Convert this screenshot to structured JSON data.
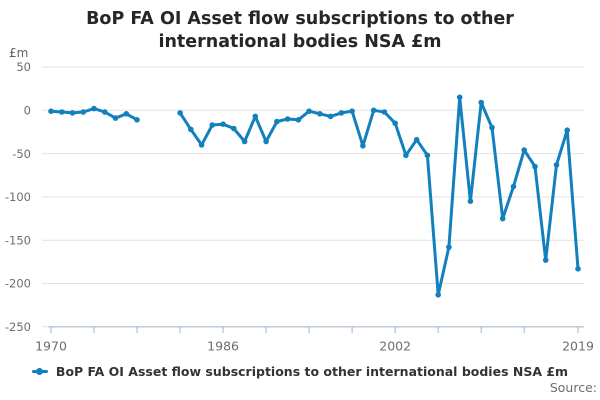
{
  "title": "BoP FA OI Asset flow subscriptions to other international bodies NSA £m",
  "legend": {
    "label": "BoP FA OI Asset flow subscriptions to other international bodies NSA £m",
    "marker": "line-with-dot-icon"
  },
  "source_label": "Source:",
  "colors": {
    "series_blue": "#1380be",
    "gridline": "#e2e2e2",
    "axis": "#aebfd2",
    "tick_label": "#6e6e6e",
    "title_text": "#262626"
  },
  "chart_data": {
    "type": "line",
    "title": "BoP FA OI Asset flow subscriptions to other international bodies NSA £m",
    "y_unit_label": "£m",
    "xlabel": "",
    "ylabel": "£m",
    "xlim": [
      1970,
      2019
    ],
    "ylim": [
      -250,
      50
    ],
    "grid": true,
    "legend_position": "bottom",
    "x_minor_ticks": [
      1970,
      1974,
      1978,
      1982,
      1986,
      1990,
      1994,
      1998,
      2002,
      2006,
      2010,
      2014,
      2019
    ],
    "x_labeled_ticks": [
      {
        "year": 1970,
        "label": "1970"
      },
      {
        "year": 1986,
        "label": "1986"
      },
      {
        "year": 2002,
        "label": "2002"
      },
      {
        "year": 2019,
        "label": "2019"
      }
    ],
    "y_ticks": [
      50,
      0,
      -50,
      -100,
      -150,
      -200,
      -250
    ],
    "series": [
      {
        "name": "BoP FA OI Asset flow subscriptions to other international bodies NSA £m",
        "color": "#1380be",
        "note": "gap in data between 1978 and 1982",
        "points": [
          [
            1970,
            -1
          ],
          [
            1971,
            -2
          ],
          [
            1972,
            -3
          ],
          [
            1973,
            -2
          ],
          [
            1974,
            2
          ],
          [
            1975,
            -2
          ],
          [
            1976,
            -9
          ],
          [
            1977,
            -4
          ],
          [
            1978,
            -11
          ],
          [
            1982,
            -3
          ],
          [
            1983,
            -22
          ],
          [
            1984,
            -40
          ],
          [
            1985,
            -17
          ],
          [
            1986,
            -16
          ],
          [
            1987,
            -21
          ],
          [
            1988,
            -36
          ],
          [
            1989,
            -7
          ],
          [
            1990,
            -36
          ],
          [
            1991,
            -13
          ],
          [
            1992,
            -10
          ],
          [
            1993,
            -11
          ],
          [
            1994,
            -1
          ],
          [
            1995,
            -4
          ],
          [
            1996,
            -7
          ],
          [
            1997,
            -3
          ],
          [
            1998,
            -1
          ],
          [
            1999,
            -41
          ],
          [
            2000,
            0
          ],
          [
            2001,
            -2
          ],
          [
            2002,
            -15
          ],
          [
            2003,
            -52
          ],
          [
            2004,
            -34
          ],
          [
            2005,
            -52
          ],
          [
            2006,
            -213
          ],
          [
            2007,
            -158
          ],
          [
            2008,
            15
          ],
          [
            2009,
            -105
          ],
          [
            2010,
            9
          ],
          [
            2011,
            -20
          ],
          [
            2012,
            -125
          ],
          [
            2013,
            -88
          ],
          [
            2014,
            -46
          ],
          [
            2015,
            -65
          ],
          [
            2016,
            -173
          ],
          [
            2017,
            -63
          ],
          [
            2018,
            -23
          ],
          [
            2019,
            -183
          ]
        ]
      }
    ]
  }
}
